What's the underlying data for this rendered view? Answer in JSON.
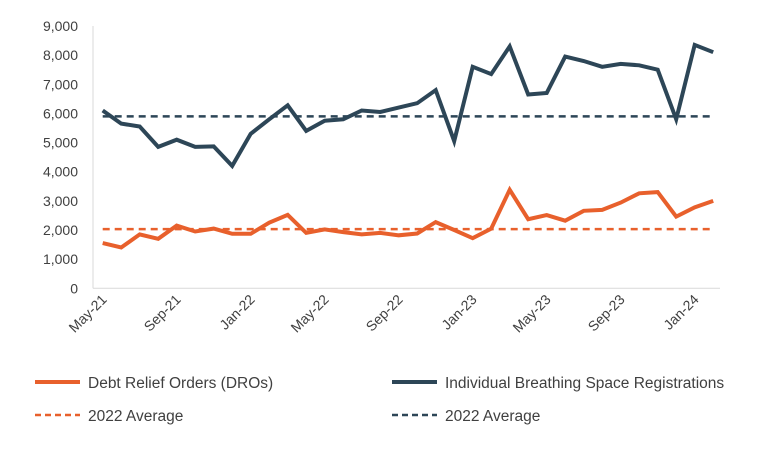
{
  "chart_data": {
    "type": "line",
    "title": "",
    "xlabel": "",
    "ylabel": "",
    "ylim": [
      0,
      9000
    ],
    "yticks": [
      "0",
      "1,000",
      "2,000",
      "3,000",
      "4,000",
      "5,000",
      "6,000",
      "7,000",
      "8,000",
      "9,000"
    ],
    "ytick_values": [
      0,
      1000,
      2000,
      3000,
      4000,
      5000,
      6000,
      7000,
      8000,
      9000
    ],
    "x": [
      "May-21",
      "Jun-21",
      "Jul-21",
      "Aug-21",
      "Sep-21",
      "Oct-21",
      "Nov-21",
      "Dec-21",
      "Jan-22",
      "Feb-22",
      "Mar-22",
      "Apr-22",
      "May-22",
      "Jun-22",
      "Jul-22",
      "Aug-22",
      "Sep-22",
      "Oct-22",
      "Nov-22",
      "Dec-22",
      "Jan-23",
      "Feb-23",
      "Mar-23",
      "Apr-23",
      "May-23",
      "Jun-23",
      "Jul-23",
      "Aug-23",
      "Sep-23",
      "Oct-23",
      "Nov-23",
      "Dec-23",
      "Jan-24",
      "Feb-24"
    ],
    "xticks": [
      "May-21",
      "Sep-21",
      "Jan-22",
      "May-22",
      "Sep-22",
      "Jan-23",
      "May-23",
      "Sep-23",
      "Jan-24"
    ],
    "grid": false,
    "legend_position": "bottom",
    "series": [
      {
        "name": "Debt Relief Orders (DROs)",
        "color": "#E8602C",
        "style": "solid",
        "values": [
          1550,
          1400,
          1850,
          1700,
          2150,
          1950,
          2050,
          1870,
          1870,
          2250,
          2520,
          1900,
          2020,
          1930,
          1850,
          1900,
          1820,
          1880,
          2270,
          2000,
          1720,
          2050,
          3380,
          2370,
          2510,
          2320,
          2660,
          2690,
          2940,
          3260,
          3300,
          2460,
          2780,
          3000
        ]
      },
      {
        "name": "Individual Breathing Space Registrations",
        "color": "#2D4657",
        "style": "solid",
        "values": [
          6100,
          5650,
          5550,
          4850,
          5100,
          4850,
          4870,
          4200,
          5300,
          5800,
          6280,
          5400,
          5750,
          5800,
          6100,
          6050,
          6200,
          6350,
          6800,
          5050,
          7600,
          7350,
          8300,
          6650,
          6700,
          7950,
          7800,
          7600,
          7700,
          7650,
          7500,
          5800,
          8350,
          8100
        ]
      },
      {
        "name": "2022 Average",
        "color": "#E8602C",
        "style": "dashed",
        "value": 2030
      },
      {
        "name": "2022 Average",
        "color": "#2D4657",
        "style": "dashed",
        "value": 5900
      }
    ]
  }
}
